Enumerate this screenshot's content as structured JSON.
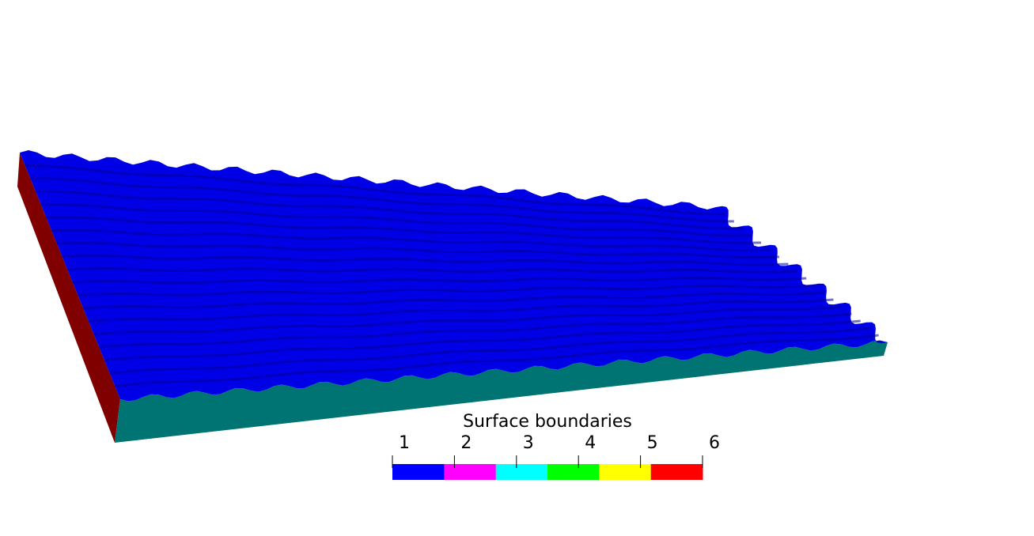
{
  "legend": {
    "title": "Surface boundaries",
    "ticks": [
      "1",
      "2",
      "3",
      "4",
      "5",
      "6"
    ],
    "colors": [
      "#0000ff",
      "#ff00ff",
      "#00ffff",
      "#00ff00",
      "#ffff00",
      "#ff0000"
    ]
  },
  "mesh": {
    "top_color": "#0000e6",
    "side_left_color": "#800000",
    "side_front_color": "#007373",
    "ridge_count": 18
  }
}
